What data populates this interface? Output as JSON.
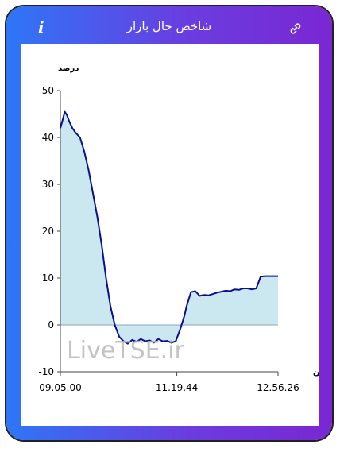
{
  "header": {
    "title": "شاخص حال بازار",
    "info_icon": "info-icon",
    "link_icon": "link-icon"
  },
  "watermark": "LiveTSE.ir",
  "chart_data": {
    "type": "area",
    "ylabel": "درصد",
    "xlabel": "زمان",
    "ylim": [
      -10,
      50
    ],
    "yticks": [
      "50",
      "40",
      "30",
      "20",
      "10",
      "0",
      "-10"
    ],
    "xticks": [
      "09.05.00",
      "11.19.44",
      "12.56.26"
    ],
    "xtick_values": [
      0.0,
      0.535,
      1.0
    ],
    "line_color": "#0a0f8c",
    "fill_color": "#cbe7f0",
    "series": [
      {
        "x": [
          0,
          0.012,
          0.02,
          0.03,
          0.04,
          0.055,
          0.07,
          0.09,
          0.11,
          0.13,
          0.15,
          0.17,
          0.19,
          0.21,
          0.23,
          0.25,
          0.27,
          0.29,
          0.31,
          0.33,
          0.35,
          0.37,
          0.39,
          0.41,
          0.43,
          0.45,
          0.47,
          0.49,
          0.51,
          0.53,
          0.55,
          0.57,
          0.58,
          0.6,
          0.62,
          0.64,
          0.66,
          0.68,
          0.7,
          0.72,
          0.74,
          0.76,
          0.78,
          0.8,
          0.82,
          0.84,
          0.86,
          0.88,
          0.9,
          0.92,
          0.94,
          0.97,
          1.0
        ],
        "y": [
          42,
          44,
          45.5,
          44.8,
          43.5,
          42,
          41,
          40,
          37,
          33,
          28,
          23,
          17,
          10,
          4,
          0,
          -2.5,
          -3.5,
          -4,
          -3.2,
          -3.6,
          -3,
          -3.5,
          -3.3,
          -3.8,
          -3,
          -3.5,
          -3.4,
          -3.8,
          -3.5,
          -1,
          2,
          4,
          7,
          7.2,
          6.2,
          6.4,
          6.3,
          6.6,
          6.9,
          7.1,
          7.3,
          7.2,
          7.6,
          7.5,
          7.8,
          7.8,
          7.6,
          7.8,
          10.3,
          10.4,
          10.4,
          10.4
        ]
      }
    ]
  }
}
